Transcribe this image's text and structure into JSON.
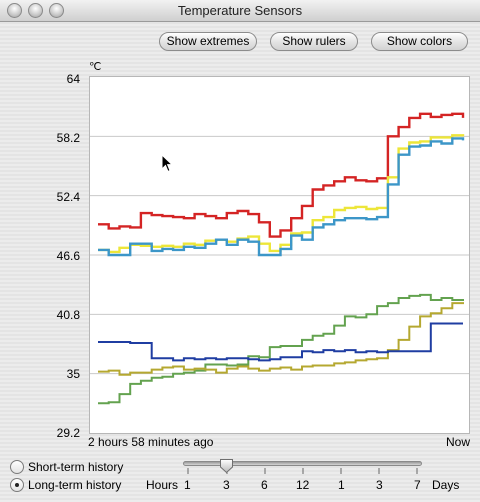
{
  "window": {
    "title": "Temperature Sensors"
  },
  "toolbar": {
    "show_extremes": "Show extremes",
    "show_rulers": "Show rulers",
    "show_colors": "Show colors"
  },
  "chart": {
    "unit": "℃",
    "y_ticks": [
      "64",
      "58.2",
      "52.4",
      "46.6",
      "40.8",
      "35",
      "29.2"
    ],
    "start_label": "2 hours 58 minutes  ago",
    "end_label": "Now"
  },
  "chart_data": {
    "type": "line",
    "ylabel": "℃",
    "ylim": [
      29.2,
      64
    ],
    "y_ticks": [
      29.2,
      35,
      40.8,
      46.6,
      52.4,
      58.2,
      64
    ],
    "grid": true,
    "x_range": [
      "2 hours 58 minutes  ago",
      "Now"
    ],
    "series": [
      {
        "color": "#d42424",
        "values": [
          49.6,
          49.2,
          49.4,
          49.3,
          50.7,
          50.5,
          50.4,
          50.3,
          50.2,
          50.6,
          50.4,
          50.2,
          50.7,
          50.9,
          50.6,
          49.8,
          48.4,
          49.0,
          50.2,
          51.4,
          53.0,
          53.4,
          53.8,
          54.2,
          53.9,
          53.8,
          54.1,
          58.2,
          59.1,
          60.0,
          60.4,
          60.1,
          60.3,
          60.4,
          60.0
        ]
      },
      {
        "color": "#ede639",
        "values": [
          47.1,
          46.9,
          47.3,
          47.6,
          47.5,
          47.4,
          47.5,
          47.4,
          47.7,
          47.6,
          48.0,
          48.1,
          47.9,
          48.2,
          48.4,
          47.7,
          47.0,
          47.6,
          48.7,
          48.8,
          50.0,
          50.3,
          51.0,
          51.2,
          51.3,
          51.1,
          51.2,
          54.2,
          57.0,
          57.6,
          57.7,
          58.1,
          58.1,
          58.3,
          58.2
        ]
      },
      {
        "color": "#3c96c8",
        "values": [
          47.1,
          46.6,
          46.6,
          47.7,
          47.7,
          47.0,
          47.2,
          47.1,
          47.4,
          47.3,
          47.7,
          48.1,
          47.6,
          48.1,
          47.9,
          46.6,
          46.6,
          47.2,
          48.5,
          48.1,
          49.3,
          49.6,
          50.0,
          50.2,
          50.2,
          50.1,
          50.3,
          53.5,
          56.4,
          57.2,
          57.3,
          57.7,
          57.5,
          58.0,
          57.8
        ]
      },
      {
        "color": "#63a24f",
        "values": [
          32.1,
          32.2,
          33.0,
          34.0,
          34.3,
          34.6,
          34.7,
          35.0,
          35.1,
          35.3,
          35.9,
          35.9,
          35.8,
          35.9,
          36.7,
          36.6,
          37.6,
          37.7,
          37.7,
          38.3,
          38.7,
          38.9,
          39.7,
          40.6,
          40.5,
          40.8,
          41.6,
          41.9,
          42.4,
          42.6,
          42.7,
          42.2,
          42.4,
          42.2,
          42.3
        ]
      },
      {
        "color": "#b5a830",
        "values": [
          35.2,
          35.3,
          34.9,
          35.1,
          35.1,
          35.4,
          35.6,
          35.7,
          35.4,
          35.5,
          35.4,
          35.1,
          35.5,
          35.7,
          35.5,
          35.3,
          35.5,
          35.6,
          35.4,
          35.7,
          35.8,
          35.8,
          36.0,
          36.1,
          36.3,
          36.4,
          36.5,
          37.3,
          38.3,
          39.6,
          40.6,
          40.9,
          41.4,
          41.9,
          42.0
        ]
      },
      {
        "color": "#1f3da2",
        "values": [
          38.1,
          38.1,
          38.1,
          38.0,
          38.0,
          36.5,
          36.5,
          36.3,
          36.5,
          36.4,
          36.5,
          36.4,
          36.5,
          36.5,
          36.4,
          36.3,
          36.4,
          36.6,
          36.6,
          37.2,
          37.1,
          37.3,
          37.2,
          37.3,
          37.1,
          37.2,
          37.1,
          37.2,
          37.2,
          37.2,
          37.2,
          39.9,
          39.9,
          39.9,
          39.9
        ]
      }
    ]
  },
  "history": {
    "short_term": "Short-term history",
    "long_term": "Long-term history",
    "selected": "Long-term history"
  },
  "slider": {
    "left_label": "Hours",
    "right_label": "Days",
    "stops": [
      "1",
      "3",
      "6",
      "12",
      "1",
      "3",
      "7"
    ],
    "selected": "3 Hours"
  }
}
